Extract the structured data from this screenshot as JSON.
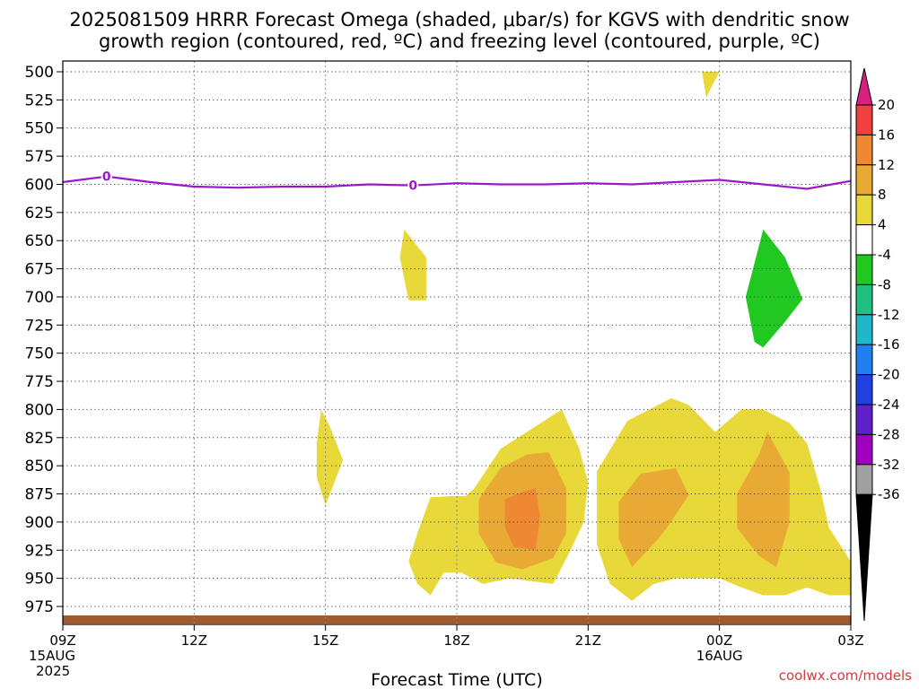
{
  "title_line1": "2025081509 HRRR Forecast Omega (shaded, μbar/s) for KGVS with dendritic snow",
  "title_line2": "growth region (contoured, red, ºC) and freezing level (contoured, purple, ºC)",
  "credit": "coolwx.com/models",
  "chart_data": {
    "type": "time-height cross section (filled contour)",
    "xlabel": "Forecast Time (UTC)",
    "ylabel": "",
    "x_range_hours": [
      0,
      18
    ],
    "x_ticks": [
      {
        "hour": 0,
        "label": "09Z",
        "date": "15AUG",
        "year": "2025"
      },
      {
        "hour": 3,
        "label": "12Z"
      },
      {
        "hour": 6,
        "label": "15Z"
      },
      {
        "hour": 9,
        "label": "18Z"
      },
      {
        "hour": 12,
        "label": "21Z"
      },
      {
        "hour": 15,
        "label": "00Z",
        "date": "16AUG"
      },
      {
        "hour": 18,
        "label": "03Z"
      }
    ],
    "y_ticks": [
      "500",
      "525",
      "550",
      "575",
      "600",
      "625",
      "650",
      "675",
      "700",
      "725",
      "750",
      "775",
      "800",
      "825",
      "850",
      "875",
      "900",
      "925",
      "950",
      "975"
    ],
    "y_axis": "pressure (mb), top = 500",
    "grid": true,
    "colorbar": {
      "units": "μbar/s",
      "labels": [
        "20",
        "16",
        "12",
        "8",
        "4",
        "-4",
        "-8",
        "-12",
        "-16",
        "-20",
        "-24",
        "-28",
        "-32",
        "-36"
      ],
      "colors": [
        "#d9207f",
        "#f04040",
        "#ee8832",
        "#e8aa35",
        "#e8d83a",
        "#ffffff",
        "#22c822",
        "#20c080",
        "#20b8c8",
        "#2080f0",
        "#2040e0",
        "#6020c8",
        "#a000c0",
        "#a0a0a0",
        "#000000"
      ]
    },
    "freezing_level": {
      "value": "0",
      "color": "#9a18c8",
      "points": [
        [
          0,
          598
        ],
        [
          1,
          593
        ],
        [
          2,
          598
        ],
        [
          3,
          602
        ],
        [
          4,
          603
        ],
        [
          5,
          602
        ],
        [
          6,
          602
        ],
        [
          7,
          600
        ],
        [
          8,
          601
        ],
        [
          9,
          599
        ],
        [
          10,
          600
        ],
        [
          11,
          600
        ],
        [
          12,
          599
        ],
        [
          13,
          600
        ],
        [
          14,
          598
        ],
        [
          15,
          596
        ],
        [
          16,
          600
        ],
        [
          17,
          604
        ],
        [
          18,
          597
        ]
      ],
      "label_hours": [
        1,
        8
      ]
    },
    "omega_regions": [
      {
        "level": "4 to 8",
        "color": "#e8d83a",
        "points": [
          [
            14.6,
            500
          ],
          [
            15.0,
            500
          ],
          [
            14.8,
            515
          ],
          [
            14.7,
            523
          ]
        ]
      },
      {
        "level": "4 to 8",
        "color": "#e8d83a",
        "points": [
          [
            7.8,
            640
          ],
          [
            8.3,
            665
          ],
          [
            8.3,
            703
          ],
          [
            7.9,
            703
          ],
          [
            7.7,
            665
          ]
        ]
      },
      {
        "level": "4 to 8",
        "color": "#e8d83a",
        "points": [
          [
            5.9,
            800
          ],
          [
            6.1,
            815
          ],
          [
            6.4,
            845
          ],
          [
            6.0,
            885
          ],
          [
            5.8,
            860
          ],
          [
            5.8,
            830
          ]
        ]
      },
      {
        "level": "4 to 8",
        "color": "#e8d83a",
        "points": [
          [
            7.9,
            935
          ],
          [
            8.1,
            910
          ],
          [
            8.4,
            878
          ],
          [
            8.9,
            877
          ],
          [
            9.2,
            877
          ],
          [
            9.4,
            870
          ],
          [
            10.0,
            835
          ],
          [
            10.8,
            815
          ],
          [
            11.4,
            800
          ],
          [
            11.8,
            835
          ],
          [
            12.0,
            865
          ],
          [
            11.9,
            900
          ],
          [
            11.6,
            925
          ],
          [
            11.2,
            955
          ],
          [
            10.2,
            950
          ],
          [
            9.6,
            955
          ],
          [
            9.1,
            945
          ],
          [
            8.7,
            945
          ],
          [
            8.4,
            965
          ],
          [
            8.1,
            955
          ]
        ]
      },
      {
        "level": "4 to 8",
        "color": "#e8d83a",
        "points": [
          [
            12.2,
            855
          ],
          [
            12.9,
            810
          ],
          [
            13.9,
            790
          ],
          [
            14.3,
            796
          ],
          [
            14.9,
            820
          ],
          [
            15.5,
            800
          ],
          [
            16.0,
            800
          ],
          [
            16.6,
            812
          ],
          [
            17.0,
            830
          ],
          [
            17.3,
            870
          ],
          [
            17.5,
            905
          ],
          [
            18.0,
            935
          ],
          [
            18.0,
            965
          ],
          [
            17.5,
            965
          ],
          [
            17.0,
            958
          ],
          [
            16.5,
            965
          ],
          [
            16.0,
            965
          ],
          [
            15.5,
            958
          ],
          [
            15.0,
            950
          ],
          [
            14.0,
            950
          ],
          [
            13.5,
            955
          ],
          [
            13.0,
            970
          ],
          [
            12.5,
            955
          ],
          [
            12.2,
            920
          ]
        ]
      },
      {
        "level": "8 to 12",
        "color": "#e8aa35",
        "points": [
          [
            9.5,
            880
          ],
          [
            10.0,
            852
          ],
          [
            10.6,
            840
          ],
          [
            11.1,
            838
          ],
          [
            11.5,
            870
          ],
          [
            11.5,
            910
          ],
          [
            11.2,
            932
          ],
          [
            10.5,
            942
          ],
          [
            9.9,
            936
          ],
          [
            9.5,
            910
          ]
        ]
      },
      {
        "level": "8 to 12",
        "color": "#e8aa35",
        "points": [
          [
            12.7,
            882
          ],
          [
            13.2,
            857
          ],
          [
            14.0,
            852
          ],
          [
            14.3,
            876
          ],
          [
            13.8,
            905
          ],
          [
            13.6,
            915
          ],
          [
            13.0,
            940
          ],
          [
            12.7,
            915
          ]
        ]
      },
      {
        "level": "8 to 12",
        "color": "#e8aa35",
        "points": [
          [
            15.4,
            875
          ],
          [
            15.9,
            840
          ],
          [
            16.1,
            820
          ],
          [
            16.6,
            856
          ],
          [
            16.6,
            900
          ],
          [
            16.3,
            940
          ],
          [
            15.9,
            930
          ],
          [
            15.4,
            905
          ]
        ]
      },
      {
        "level": "12 to 16",
        "color": "#ee8832",
        "points": [
          [
            10.1,
            880
          ],
          [
            10.5,
            873
          ],
          [
            10.8,
            870
          ],
          [
            10.9,
            895
          ],
          [
            10.8,
            925
          ],
          [
            10.3,
            922
          ],
          [
            10.1,
            905
          ]
        ]
      },
      {
        "level": "-4 to -8",
        "color": "#22c822",
        "points": [
          [
            15.6,
            700
          ],
          [
            15.8,
            670
          ],
          [
            16.0,
            640
          ],
          [
            16.5,
            665
          ],
          [
            16.9,
            702
          ],
          [
            16.5,
            722
          ],
          [
            16.0,
            745
          ],
          [
            15.8,
            740
          ],
          [
            15.7,
            720
          ]
        ]
      }
    ],
    "surface": {
      "color": "#a05a2c",
      "label": ""
    }
  }
}
